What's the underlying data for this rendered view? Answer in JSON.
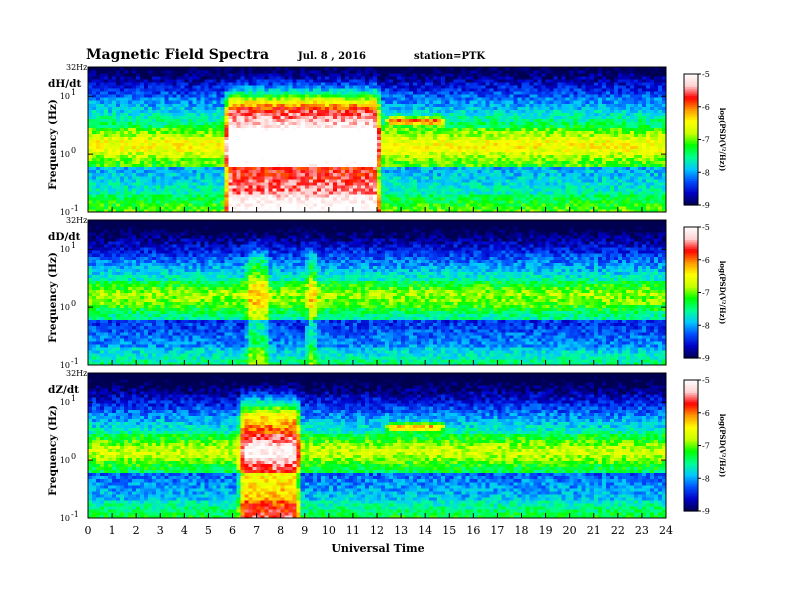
{
  "header": {
    "title": "Magnetic  Field  Spectra",
    "date": "Jul.  8  , 2016",
    "station": "station=PTK"
  },
  "chart_data": {
    "type": "heatmap",
    "xlabel": "Universal Time",
    "x_ticks": [
      "0",
      "1",
      "2",
      "3",
      "4",
      "5",
      "6",
      "7",
      "8",
      "9",
      "10",
      "11",
      "12",
      "13",
      "14",
      "15",
      "16",
      "17",
      "18",
      "19",
      "20",
      "21",
      "22",
      "23",
      "24"
    ],
    "xlim": [
      0,
      24
    ],
    "ylabel": "Frequency  (Hz)",
    "y_scale": "log",
    "ylim": [
      0.1,
      32
    ],
    "y_ticks": [
      {
        "label": "10",
        "exp": "-1",
        "value": 0.1
      },
      {
        "label": "10",
        "exp": "0",
        "value": 1
      },
      {
        "label": "10",
        "exp": "1",
        "value": 10
      }
    ],
    "y_top_label": "32Hz",
    "colorbar": {
      "label": "log(PSD(V²/Hz))",
      "range": [
        -9,
        -5
      ],
      "ticks": [
        "-5",
        "-6",
        "-7",
        "-8",
        "-9"
      ],
      "colors": [
        "#000050",
        "#0000c8",
        "#0050ff",
        "#00c8ff",
        "#00ff90",
        "#00ff00",
        "#c8ff00",
        "#ffff00",
        "#ff9600",
        "#ff0000",
        "#ffd2d2",
        "#ffffff"
      ]
    },
    "panels": [
      {
        "name": "dH/dt",
        "features": [
          {
            "t0": 5.6,
            "t1": 12.2,
            "desc": "strong broadband activity",
            "level": -5.0
          },
          {
            "t0": 12.3,
            "t1": 14.9,
            "desc": "elevated line near 3-4 Hz",
            "level": -6.5
          }
        ]
      },
      {
        "name": "dD/dt",
        "features": [
          {
            "t0": 6.5,
            "t1": 7.6,
            "desc": "moderate broadband activity",
            "level": -6.5
          },
          {
            "t0": 9.0,
            "t1": 9.6,
            "desc": "burst",
            "level": -6.5
          }
        ]
      },
      {
        "name": "dZ/dt",
        "features": [
          {
            "t0": 6.2,
            "t1": 8.9,
            "desc": "strong broadband activity",
            "level": -5.5
          },
          {
            "t0": 12.3,
            "t1": 14.9,
            "desc": "elevated line near 3-4 Hz",
            "level": -6.5
          }
        ]
      }
    ]
  }
}
